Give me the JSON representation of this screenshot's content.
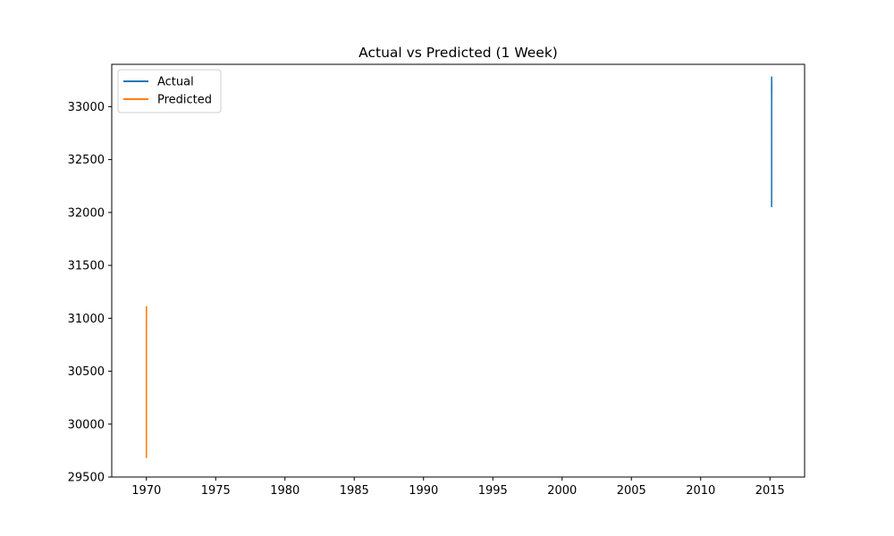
{
  "chart_data": {
    "type": "line",
    "title": "Actual vs Predicted (1 Week)",
    "xlabel": "",
    "ylabel": "",
    "xlim": [
      1967.5,
      2017.5
    ],
    "ylim": [
      29500,
      33400
    ],
    "x_ticks": [
      1970,
      1975,
      1980,
      1985,
      1990,
      1995,
      2000,
      2005,
      2010,
      2015
    ],
    "y_ticks": [
      29500,
      30000,
      30500,
      31000,
      31500,
      32000,
      32500,
      33000
    ],
    "grid": false,
    "legend_position": "upper-left",
    "series": [
      {
        "name": "Actual",
        "color": "#1f77b4",
        "x": [
          2015.12,
          2015.122,
          2015.124,
          2015.126,
          2015.128,
          2015.13
        ],
        "y": [
          32050,
          33280,
          33080,
          33250,
          33120,
          33230
        ]
      },
      {
        "name": "Predicted",
        "color": "#ff7f0e",
        "x": [
          1970.0,
          1970.001,
          1970.002,
          1970.003,
          1970.004,
          1970.005
        ],
        "y": [
          29680,
          31100,
          31020,
          31110,
          31050,
          31080
        ]
      }
    ]
  }
}
